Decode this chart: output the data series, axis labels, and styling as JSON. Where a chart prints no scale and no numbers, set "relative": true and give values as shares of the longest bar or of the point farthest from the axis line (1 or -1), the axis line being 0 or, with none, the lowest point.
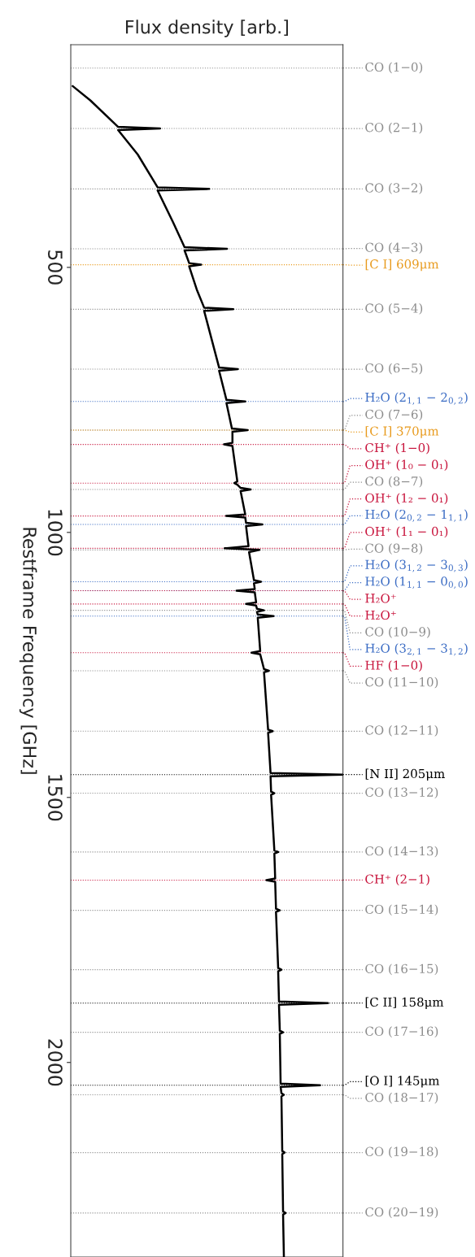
{
  "chart_data": {
    "type": "line",
    "orientation": "horizontal",
    "relative": true,
    "xlabel": "Flux density [arb.]",
    "ylabel": "Restframe Frequency [GHz]",
    "ylim": [
      2367,
      80
    ],
    "legend": "right",
    "yticks": [
      500,
      1000,
      1500,
      2000
    ],
    "grid": false,
    "series": [
      {
        "color": "#000000",
        "x": [
          158,
          185,
          235,
          238,
          241,
          287,
          349,
          352,
          355,
          415,
          462,
          465,
          468,
          492,
          495,
          498,
          542,
          576,
          579,
          582,
          689,
          692,
          695,
          750,
          753,
          756,
          804,
          807,
          810,
          831,
          834,
          837,
          904,
          907,
          910,
          916,
          919,
          922,
          966,
          969,
          972,
          982,
          985,
          988,
          1026,
          1030,
          1033,
          1037,
          1090,
          1093,
          1096,
          1107,
          1110,
          1113,
          1132,
          1135,
          1138,
          1144,
          1147,
          1150,
          1155,
          1158,
          1161,
          1224,
          1227,
          1230,
          1258,
          1261,
          1264,
          1372,
          1375,
          1378,
          1454,
          1457,
          1460,
          1489,
          1492,
          1495,
          1600,
          1603,
          1606,
          1653,
          1656,
          1659,
          1710,
          1713,
          1716,
          1822,
          1825,
          1828,
          1885,
          1888,
          1891,
          1940,
          1943,
          1946,
          2040,
          2043,
          2046,
          2058,
          2061,
          2064,
          2167,
          2170,
          2173,
          2281,
          2284,
          2287,
          2367
        ],
        "values": [
          0.007,
          0.072,
          0.174,
          0.328,
          0.174,
          0.246,
          0.319,
          0.508,
          0.319,
          0.376,
          0.418,
          0.574,
          0.418,
          0.435,
          0.479,
          0.435,
          0.463,
          0.49,
          0.597,
          0.49,
          0.545,
          0.614,
          0.545,
          0.572,
          0.641,
          0.572,
          0.592,
          0.65,
          0.594,
          0.594,
          0.563,
          0.594,
          0.612,
          0.601,
          0.612,
          0.624,
          0.661,
          0.624,
          0.641,
          0.571,
          0.641,
          0.644,
          0.704,
          0.644,
          0.653,
          0.565,
          0.693,
          0.655,
          0.673,
          0.699,
          0.673,
          0.676,
          0.609,
          0.676,
          0.681,
          0.644,
          0.681,
          0.684,
          0.71,
          0.684,
          0.687,
          0.745,
          0.687,
          0.696,
          0.664,
          0.696,
          0.71,
          0.728,
          0.71,
          0.725,
          0.742,
          0.725,
          0.734,
          1.0,
          0.734,
          0.736,
          0.748,
          0.736,
          0.748,
          0.762,
          0.748,
          0.751,
          0.719,
          0.751,
          0.754,
          0.768,
          0.754,
          0.762,
          0.774,
          0.762,
          0.765,
          0.945,
          0.765,
          0.768,
          0.78,
          0.768,
          0.771,
          0.916,
          0.771,
          0.774,
          0.783,
          0.774,
          0.777,
          0.786,
          0.777,
          0.78,
          0.789,
          0.78,
          0.783
        ]
      }
    ],
    "ref_lines": [
      {
        "axis": "y",
        "value": 124,
        "label": "CO (1−0)",
        "color": "#8c8c8c",
        "line_style": "dotted"
      },
      {
        "axis": "y",
        "value": 238,
        "label": "CO (2−1)",
        "color": "#8c8c8c",
        "line_style": "dotted"
      },
      {
        "axis": "y",
        "value": 352,
        "label": "CO (3−2)",
        "color": "#8c8c8c",
        "line_style": "dotted"
      },
      {
        "axis": "y",
        "value": 465,
        "label": "CO (4−3)",
        "color": "#8c8c8c",
        "line_style": "dotted"
      },
      {
        "axis": "y",
        "value": 495,
        "label": "[C I] 609μm",
        "color": "#e89a1c",
        "line_style": "dotted"
      },
      {
        "axis": "y",
        "value": 579,
        "label": "CO (5−4)",
        "color": "#8c8c8c",
        "line_style": "dotted"
      },
      {
        "axis": "y",
        "value": 692,
        "label": "CO (6−5)",
        "color": "#8c8c8c",
        "line_style": "dotted"
      },
      {
        "axis": "y",
        "value": 753,
        "label": "H₂O (2$_{1,1}$ − 2$_{0,2}$)",
        "color": "#3b6cc4",
        "line_style": "dotted"
      },
      {
        "axis": "y",
        "value": 807,
        "label": "CO (7−6)",
        "color": "#8c8c8c",
        "line_style": "dotted"
      },
      {
        "axis": "y",
        "value": 807,
        "label": "[C I] 370μm",
        "color": "#e89a1c",
        "line_style": "dotted"
      },
      {
        "axis": "y",
        "value": 834,
        "label": "CH⁺ (1−0)",
        "color": "#c8143c",
        "line_style": "dotted"
      },
      {
        "axis": "y",
        "value": 907,
        "label": "OH⁺ (1₀ − 0₁)",
        "color": "#c8143c",
        "line_style": "dotted"
      },
      {
        "axis": "y",
        "value": 919,
        "label": "CO (8−7)",
        "color": "#8c8c8c",
        "line_style": "dotted"
      },
      {
        "axis": "y",
        "value": 969,
        "label": "OH⁺ (1₂ − 0₁)",
        "color": "#c8143c",
        "line_style": "dotted"
      },
      {
        "axis": "y",
        "value": 985,
        "label": "H₂O (2$_{0,2}$ − 1$_{1,1}$)",
        "color": "#3b6cc4",
        "line_style": "dotted"
      },
      {
        "axis": "y",
        "value": 1030,
        "label": "OH⁺ (1₁ − 0₁)",
        "color": "#c8143c",
        "line_style": "dotted"
      },
      {
        "axis": "y",
        "value": 1033,
        "label": "CO (9−8)",
        "color": "#8c8c8c",
        "line_style": "dotted"
      },
      {
        "axis": "y",
        "value": 1093,
        "label": "H₂O (3$_{1,2}$ − 3$_{0,3}$)",
        "color": "#3b6cc4",
        "line_style": "dotted"
      },
      {
        "axis": "y",
        "value": 1110,
        "label": "H₂O (1$_{1,1}$ − 0$_{0,0}$)",
        "color": "#3b6cc4",
        "line_style": "dotted"
      },
      {
        "axis": "y",
        "value": 1110,
        "label": "H₂O⁺",
        "color": "#c8143c",
        "line_style": "dotted"
      },
      {
        "axis": "y",
        "value": 1135,
        "label": "H₂O⁺",
        "color": "#c8143c",
        "line_style": "dotted"
      },
      {
        "axis": "y",
        "value": 1147,
        "label": "CO (10−9)",
        "color": "#8c8c8c",
        "line_style": "dotted"
      },
      {
        "axis": "y",
        "value": 1158,
        "label": "H₂O (3$_{2,1}$ − 3$_{1,2}$)",
        "color": "#3b6cc4",
        "line_style": "dotted"
      },
      {
        "axis": "y",
        "value": 1227,
        "label": "HF (1−0)",
        "color": "#c8143c",
        "line_style": "dotted"
      },
      {
        "axis": "y",
        "value": 1261,
        "label": "CO (11−10)",
        "color": "#8c8c8c",
        "line_style": "dotted"
      },
      {
        "axis": "y",
        "value": 1375,
        "label": "CO (12−11)",
        "color": "#8c8c8c",
        "line_style": "dotted"
      },
      {
        "axis": "y",
        "value": 1457,
        "label": "[N II] 205μm",
        "color": "#000000",
        "line_style": "dotted"
      },
      {
        "axis": "y",
        "value": 1492,
        "label": "CO (13−12)",
        "color": "#8c8c8c",
        "line_style": "dotted"
      },
      {
        "axis": "y",
        "value": 1603,
        "label": "CO (14−13)",
        "color": "#8c8c8c",
        "line_style": "dotted"
      },
      {
        "axis": "y",
        "value": 1656,
        "label": "CH⁺ (2−1)",
        "color": "#c8143c",
        "line_style": "dotted"
      },
      {
        "axis": "y",
        "value": 1713,
        "label": "CO (15−14)",
        "color": "#8c8c8c",
        "line_style": "dotted"
      },
      {
        "axis": "y",
        "value": 1825,
        "label": "CO (16−15)",
        "color": "#8c8c8c",
        "line_style": "dotted"
      },
      {
        "axis": "y",
        "value": 1888,
        "label": "[C II] 158μm",
        "color": "#000000",
        "line_style": "dotted"
      },
      {
        "axis": "y",
        "value": 1943,
        "label": "CO (17−16)",
        "color": "#8c8c8c",
        "line_style": "dotted"
      },
      {
        "axis": "y",
        "value": 2043,
        "label": "[O I] 145μm",
        "color": "#000000",
        "line_style": "dotted"
      },
      {
        "axis": "y",
        "value": 2061,
        "label": "CO (18−17)",
        "color": "#8c8c8c",
        "line_style": "dotted"
      },
      {
        "axis": "y",
        "value": 2170,
        "label": "CO (19−18)",
        "color": "#8c8c8c",
        "line_style": "dotted"
      },
      {
        "axis": "y",
        "value": 2284,
        "label": "CO (20−19)",
        "color": "#8c8c8c",
        "line_style": "dotted"
      }
    ]
  }
}
